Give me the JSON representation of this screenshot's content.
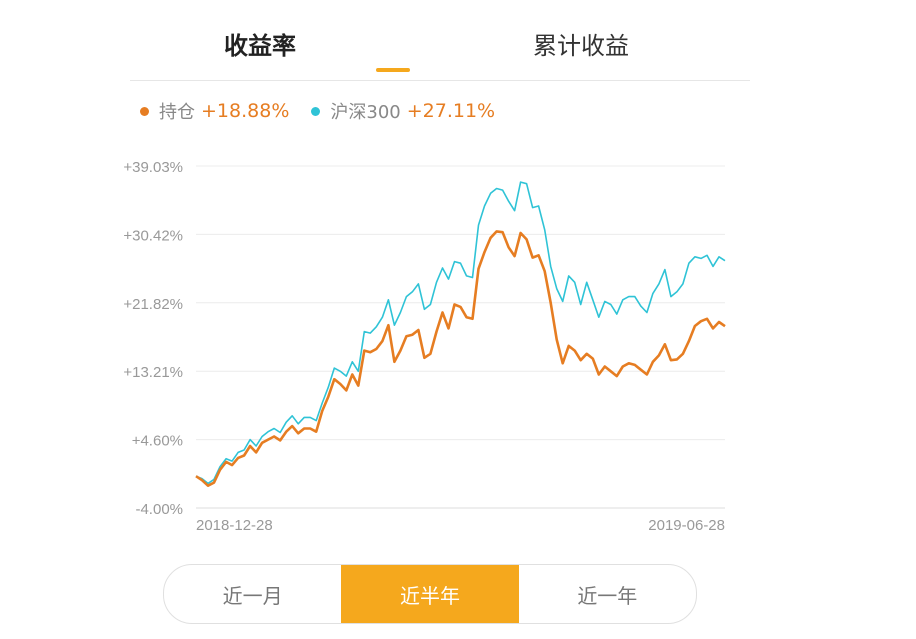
{
  "tabs": [
    {
      "label": "收益率",
      "active": true
    },
    {
      "label": "累计收益",
      "active": false
    }
  ],
  "legend": [
    {
      "name": "持仓",
      "value": "+18.88%",
      "color": "#e67d22"
    },
    {
      "name": "沪深300",
      "value": "+27.11%",
      "color": "#2fc3d6"
    }
  ],
  "range_buttons": [
    {
      "label": "近一月",
      "active": false
    },
    {
      "label": "近半年",
      "active": true
    },
    {
      "label": "近一年",
      "active": false
    }
  ],
  "chart_data": {
    "type": "line",
    "x_start_label": "2018-12-28",
    "x_end_label": "2019-06-28",
    "y_ticks": [
      "+39.03%",
      "+30.42%",
      "+21.82%",
      "+13.21%",
      "+4.60%",
      "-4.00%"
    ],
    "ylim": [
      -4.0,
      39.03
    ],
    "grid": true,
    "series": [
      {
        "name": "持仓",
        "color": "#e67d22",
        "values": [
          0,
          -0.5,
          -1.2,
          -0.8,
          0.8,
          1.8,
          1.4,
          2.3,
          2.6,
          3.8,
          3.0,
          4.2,
          4.6,
          5.0,
          4.5,
          5.6,
          6.3,
          5.4,
          6.0,
          6.0,
          5.6,
          8.2,
          10.0,
          12.2,
          11.6,
          10.8,
          12.8,
          11.4,
          15.8,
          15.6,
          16.0,
          17.0,
          19.0,
          14.4,
          15.8,
          17.6,
          17.8,
          18.4,
          14.9,
          15.4,
          18.2,
          20.6,
          18.6,
          21.6,
          21.3,
          20.0,
          19.8,
          26.1,
          28.2,
          30.0,
          30.8,
          30.7,
          28.8,
          27.7,
          30.6,
          29.8,
          27.5,
          27.8,
          25.8,
          21.8,
          17.2,
          14.2,
          16.4,
          15.8,
          14.6,
          15.4,
          14.8,
          12.8,
          13.8,
          13.2,
          12.6,
          13.8,
          14.2,
          14.0,
          13.4,
          12.8,
          14.4,
          15.2,
          16.6,
          14.6,
          14.7,
          15.4,
          17.0,
          18.9,
          19.5,
          19.8,
          18.6,
          19.4,
          18.88
        ]
      },
      {
        "name": "沪深300",
        "color": "#2fc3d6",
        "values": [
          0,
          -0.3,
          -0.9,
          -0.4,
          1.2,
          2.2,
          1.9,
          3.0,
          3.3,
          4.6,
          3.8,
          5.0,
          5.6,
          6.0,
          5.5,
          6.8,
          7.6,
          6.6,
          7.4,
          7.4,
          7.0,
          9.2,
          11.2,
          13.6,
          13.2,
          12.6,
          14.4,
          13.2,
          18.2,
          18.0,
          18.8,
          20.0,
          22.2,
          19.0,
          20.6,
          22.6,
          23.2,
          24.2,
          21.0,
          21.6,
          24.4,
          26.2,
          24.8,
          27.0,
          26.8,
          25.2,
          25.0,
          31.6,
          34.0,
          35.6,
          36.2,
          36.0,
          34.6,
          33.4,
          37.0,
          36.8,
          33.8,
          34.0,
          31.0,
          26.4,
          23.6,
          22.0,
          25.2,
          24.4,
          21.6,
          24.4,
          22.2,
          20.0,
          22.0,
          21.6,
          20.4,
          22.2,
          22.6,
          22.6,
          21.4,
          20.6,
          23.0,
          24.2,
          26.0,
          22.6,
          23.2,
          24.2,
          26.8,
          27.6,
          27.4,
          27.8,
          26.4,
          27.6,
          27.11
        ]
      }
    ]
  }
}
